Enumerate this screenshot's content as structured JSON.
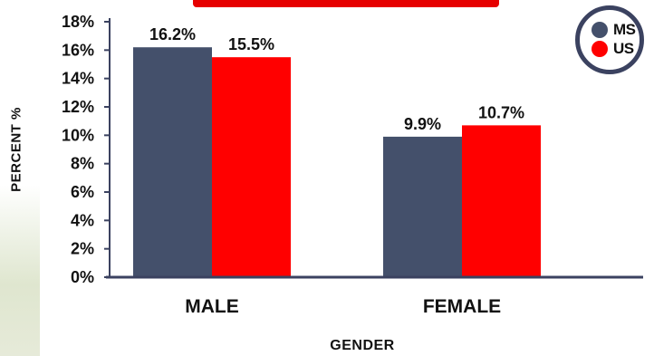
{
  "chart_data": {
    "type": "bar",
    "categories": [
      "MALE",
      "FEMALE"
    ],
    "series": [
      {
        "name": "MS",
        "values": [
          16.2,
          9.9
        ],
        "labels": [
          "16.2%",
          "9.9%"
        ],
        "color": "#44506b"
      },
      {
        "name": "US",
        "values": [
          15.5,
          10.7
        ],
        "labels": [
          "15.5%",
          "10.7%"
        ],
        "color": "#ff0000"
      }
    ],
    "xlabel": "GENDER",
    "ylabel": "PERCENT %",
    "ylim": [
      0,
      18
    ],
    "yticks": [
      "0%",
      "2%",
      "4%",
      "6%",
      "8%",
      "10%",
      "12%",
      "14%",
      "16%",
      "18%"
    ],
    "grid": false,
    "legend_position": "top-right"
  },
  "legend": [
    {
      "label": "MS",
      "color": "#44506b"
    },
    {
      "label": "US",
      "color": "#ff0000"
    }
  ]
}
